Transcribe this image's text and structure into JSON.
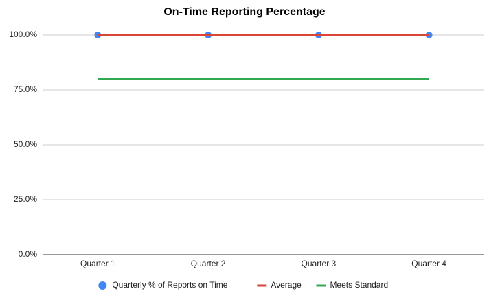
{
  "chart_data": {
    "type": "line",
    "title": "On-Time Reporting Percentage",
    "categories": [
      "Quarter 1",
      "Quarter 2",
      "Quarter 3",
      "Quarter 4"
    ],
    "series": [
      {
        "name": "Quarterly % of Reports on Time",
        "color": "#4285f4",
        "style": "points",
        "values": [
          100,
          100,
          100,
          100
        ]
      },
      {
        "name": "Average",
        "color": "#db4437",
        "style": "line",
        "values": [
          100,
          100,
          100,
          100
        ]
      },
      {
        "name": "Meets Standard",
        "color": "#34a853",
        "style": "line",
        "values": [
          80,
          80,
          80,
          80
        ]
      }
    ],
    "ylim": [
      0,
      100
    ],
    "yticks": [
      {
        "value": 0,
        "label": "0.0%"
      },
      {
        "value": 25,
        "label": "25.0%"
      },
      {
        "value": 50,
        "label": "50.0%"
      },
      {
        "value": 75,
        "label": "75.0%"
      },
      {
        "value": 100,
        "label": "100.0%"
      }
    ],
    "grid": true,
    "legend": "bottom"
  }
}
